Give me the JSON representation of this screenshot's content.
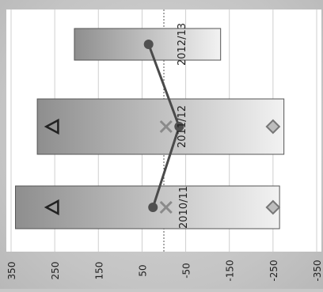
{
  "chart_data": {
    "type": "bar",
    "orientation": "rotated-90",
    "value_axis": {
      "ticks": [
        350,
        250,
        150,
        50,
        -50,
        -150,
        -250,
        -350
      ],
      "tick_labels": [
        "350",
        "250",
        "150",
        "50",
        "-50",
        "-150",
        "-250",
        "-350"
      ],
      "range": [
        -370,
        370
      ]
    },
    "categories": [
      "2010/11",
      "2011/12",
      "2012/13"
    ],
    "bars": [
      {
        "category": "2010/11",
        "from": 340,
        "to": -265
      },
      {
        "category": "2011/12",
        "from": 290,
        "to": -275
      },
      {
        "category": "2012/13",
        "from": 205,
        "to": -130
      }
    ],
    "markers": [
      {
        "shape": "circle",
        "values": [
          25,
          -35,
          35
        ]
      },
      {
        "shape": "cross",
        "values": [
          -5,
          -5,
          null
        ]
      },
      {
        "shape": "triangle",
        "values": [
          255,
          255,
          null
        ]
      },
      {
        "shape": "diamond",
        "values": [
          -250,
          -250,
          null
        ]
      }
    ],
    "line": {
      "marker": "circle",
      "values": [
        25,
        -35,
        35
      ]
    },
    "grid": true,
    "zero_line": true,
    "colors": {
      "bar_dark": "#8e8e8e",
      "bar_light": "#f2f2f2",
      "bar_edge": "#555555",
      "line": "#4a4a4a",
      "circle": "#505050",
      "cross": "#8a8a8a",
      "triangle": "#222222",
      "diamond": "#777777",
      "plot_bg": "#ffffff",
      "grid": "#cfcfcf"
    }
  }
}
